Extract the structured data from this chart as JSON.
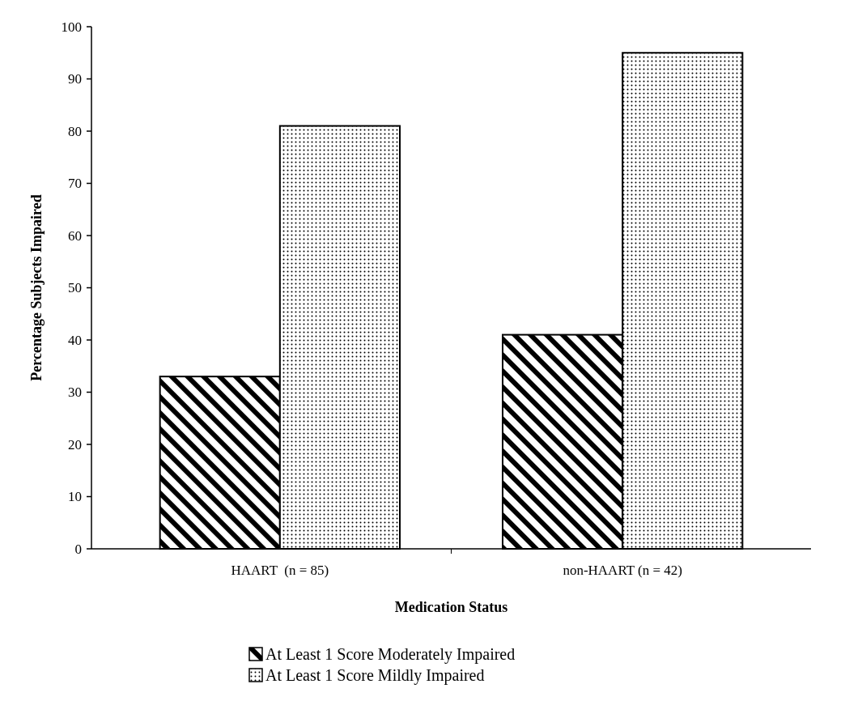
{
  "chart_data": {
    "type": "bar",
    "xlabel": "Medication Status",
    "ylabel": "Percentage Subjects Impaired",
    "categories": [
      "HAART  (n = 85)",
      "non-HAART (n = 42)"
    ],
    "series": [
      {
        "name": "At Least 1 Score Moderately Impaired",
        "color": "#000000",
        "values": [
          33,
          41
        ]
      },
      {
        "name": "At Least 1 Score Mildly Impaired",
        "color": "#000000",
        "values": [
          81,
          95
        ]
      }
    ],
    "ylim": [
      0,
      100
    ],
    "yticks": [
      0,
      10,
      20,
      30,
      40,
      50,
      60,
      70,
      80,
      90,
      100
    ],
    "legend": "bottom",
    "grid": false
  }
}
